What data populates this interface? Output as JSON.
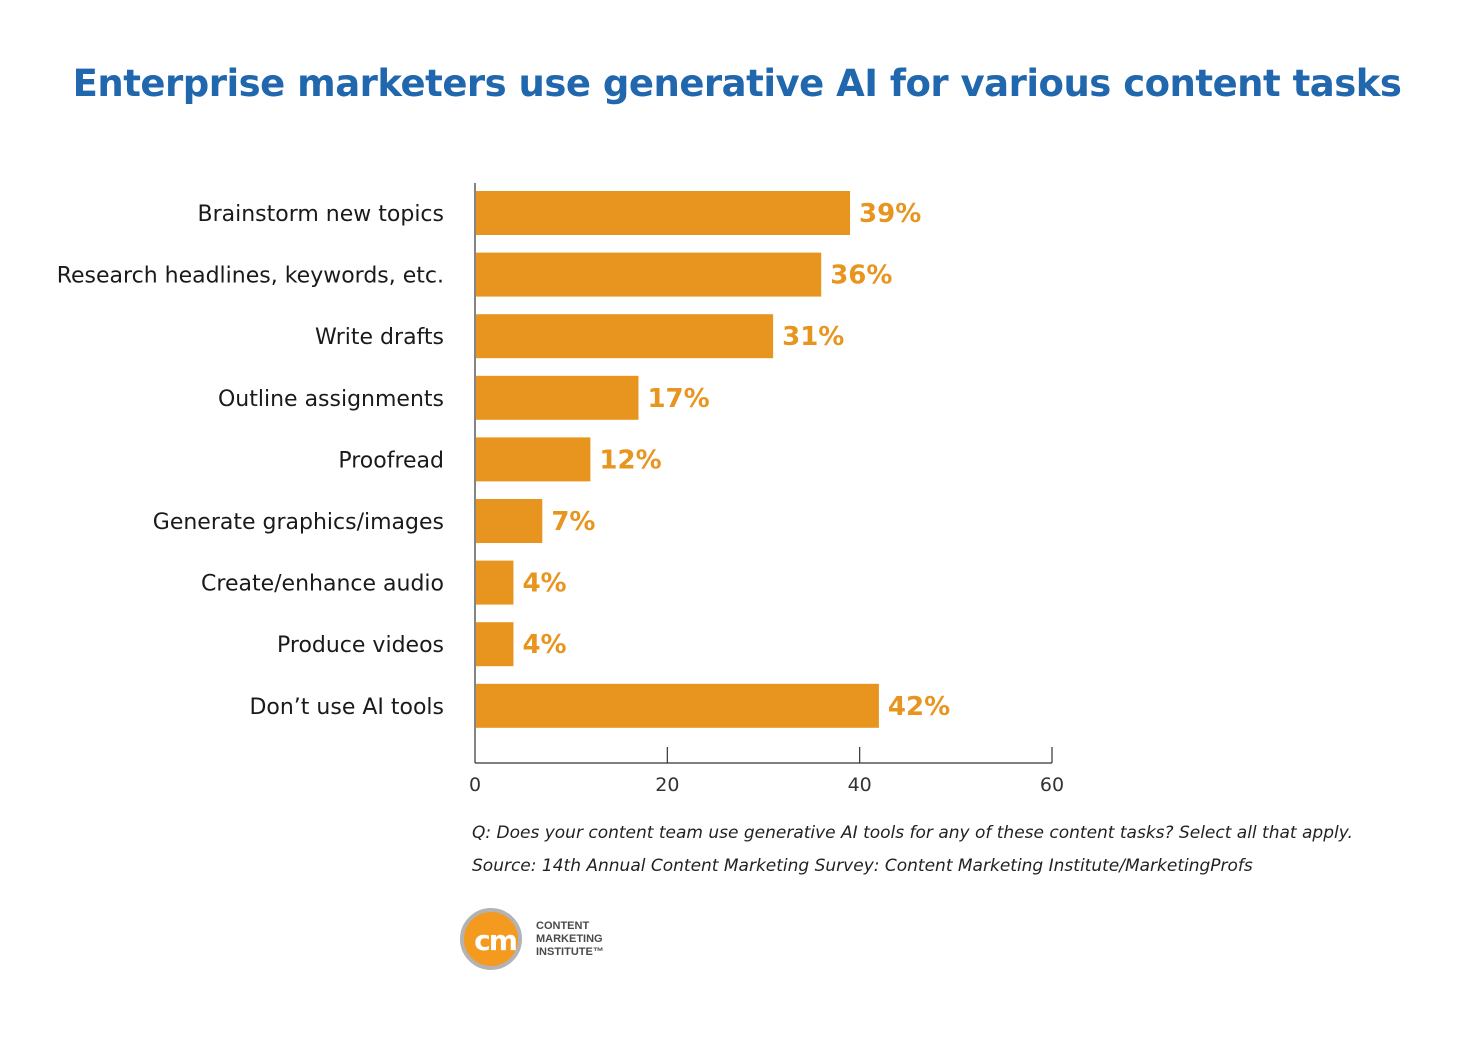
{
  "header": {
    "title": "Enterprise marketers use generative AI for various content tasks"
  },
  "chart_data": {
    "type": "bar",
    "orientation": "horizontal",
    "categories": [
      "Brainstorm new topics",
      "Research headlines, keywords, etc.",
      "Write drafts",
      "Outline assignments",
      "Proofread",
      "Generate graphics/images",
      "Create/enhance audio",
      "Produce videos",
      "Don’t use AI tools"
    ],
    "values": [
      39,
      36,
      31,
      17,
      12,
      7,
      4,
      4,
      42
    ],
    "value_labels": [
      "39%",
      "36%",
      "31%",
      "17%",
      "12%",
      "7%",
      "4%",
      "4%",
      "42%"
    ],
    "xlim": [
      0,
      60
    ],
    "xticks": [
      0,
      20,
      40,
      60
    ],
    "grid": false,
    "bar_color": "#e8951f",
    "label_color": "#e8951f"
  },
  "footer": {
    "question": "Q: Does your content team use generative AI tools for any of these content tasks? Select all that apply.",
    "source": "Source: 14th Annual Content Marketing Survey: Content Marketing Institute/MarketingProfs"
  },
  "logo": {
    "mark": "cm",
    "line1": "CONTENT",
    "line2": "MARKETING",
    "line3": "INSTITUTE™"
  }
}
